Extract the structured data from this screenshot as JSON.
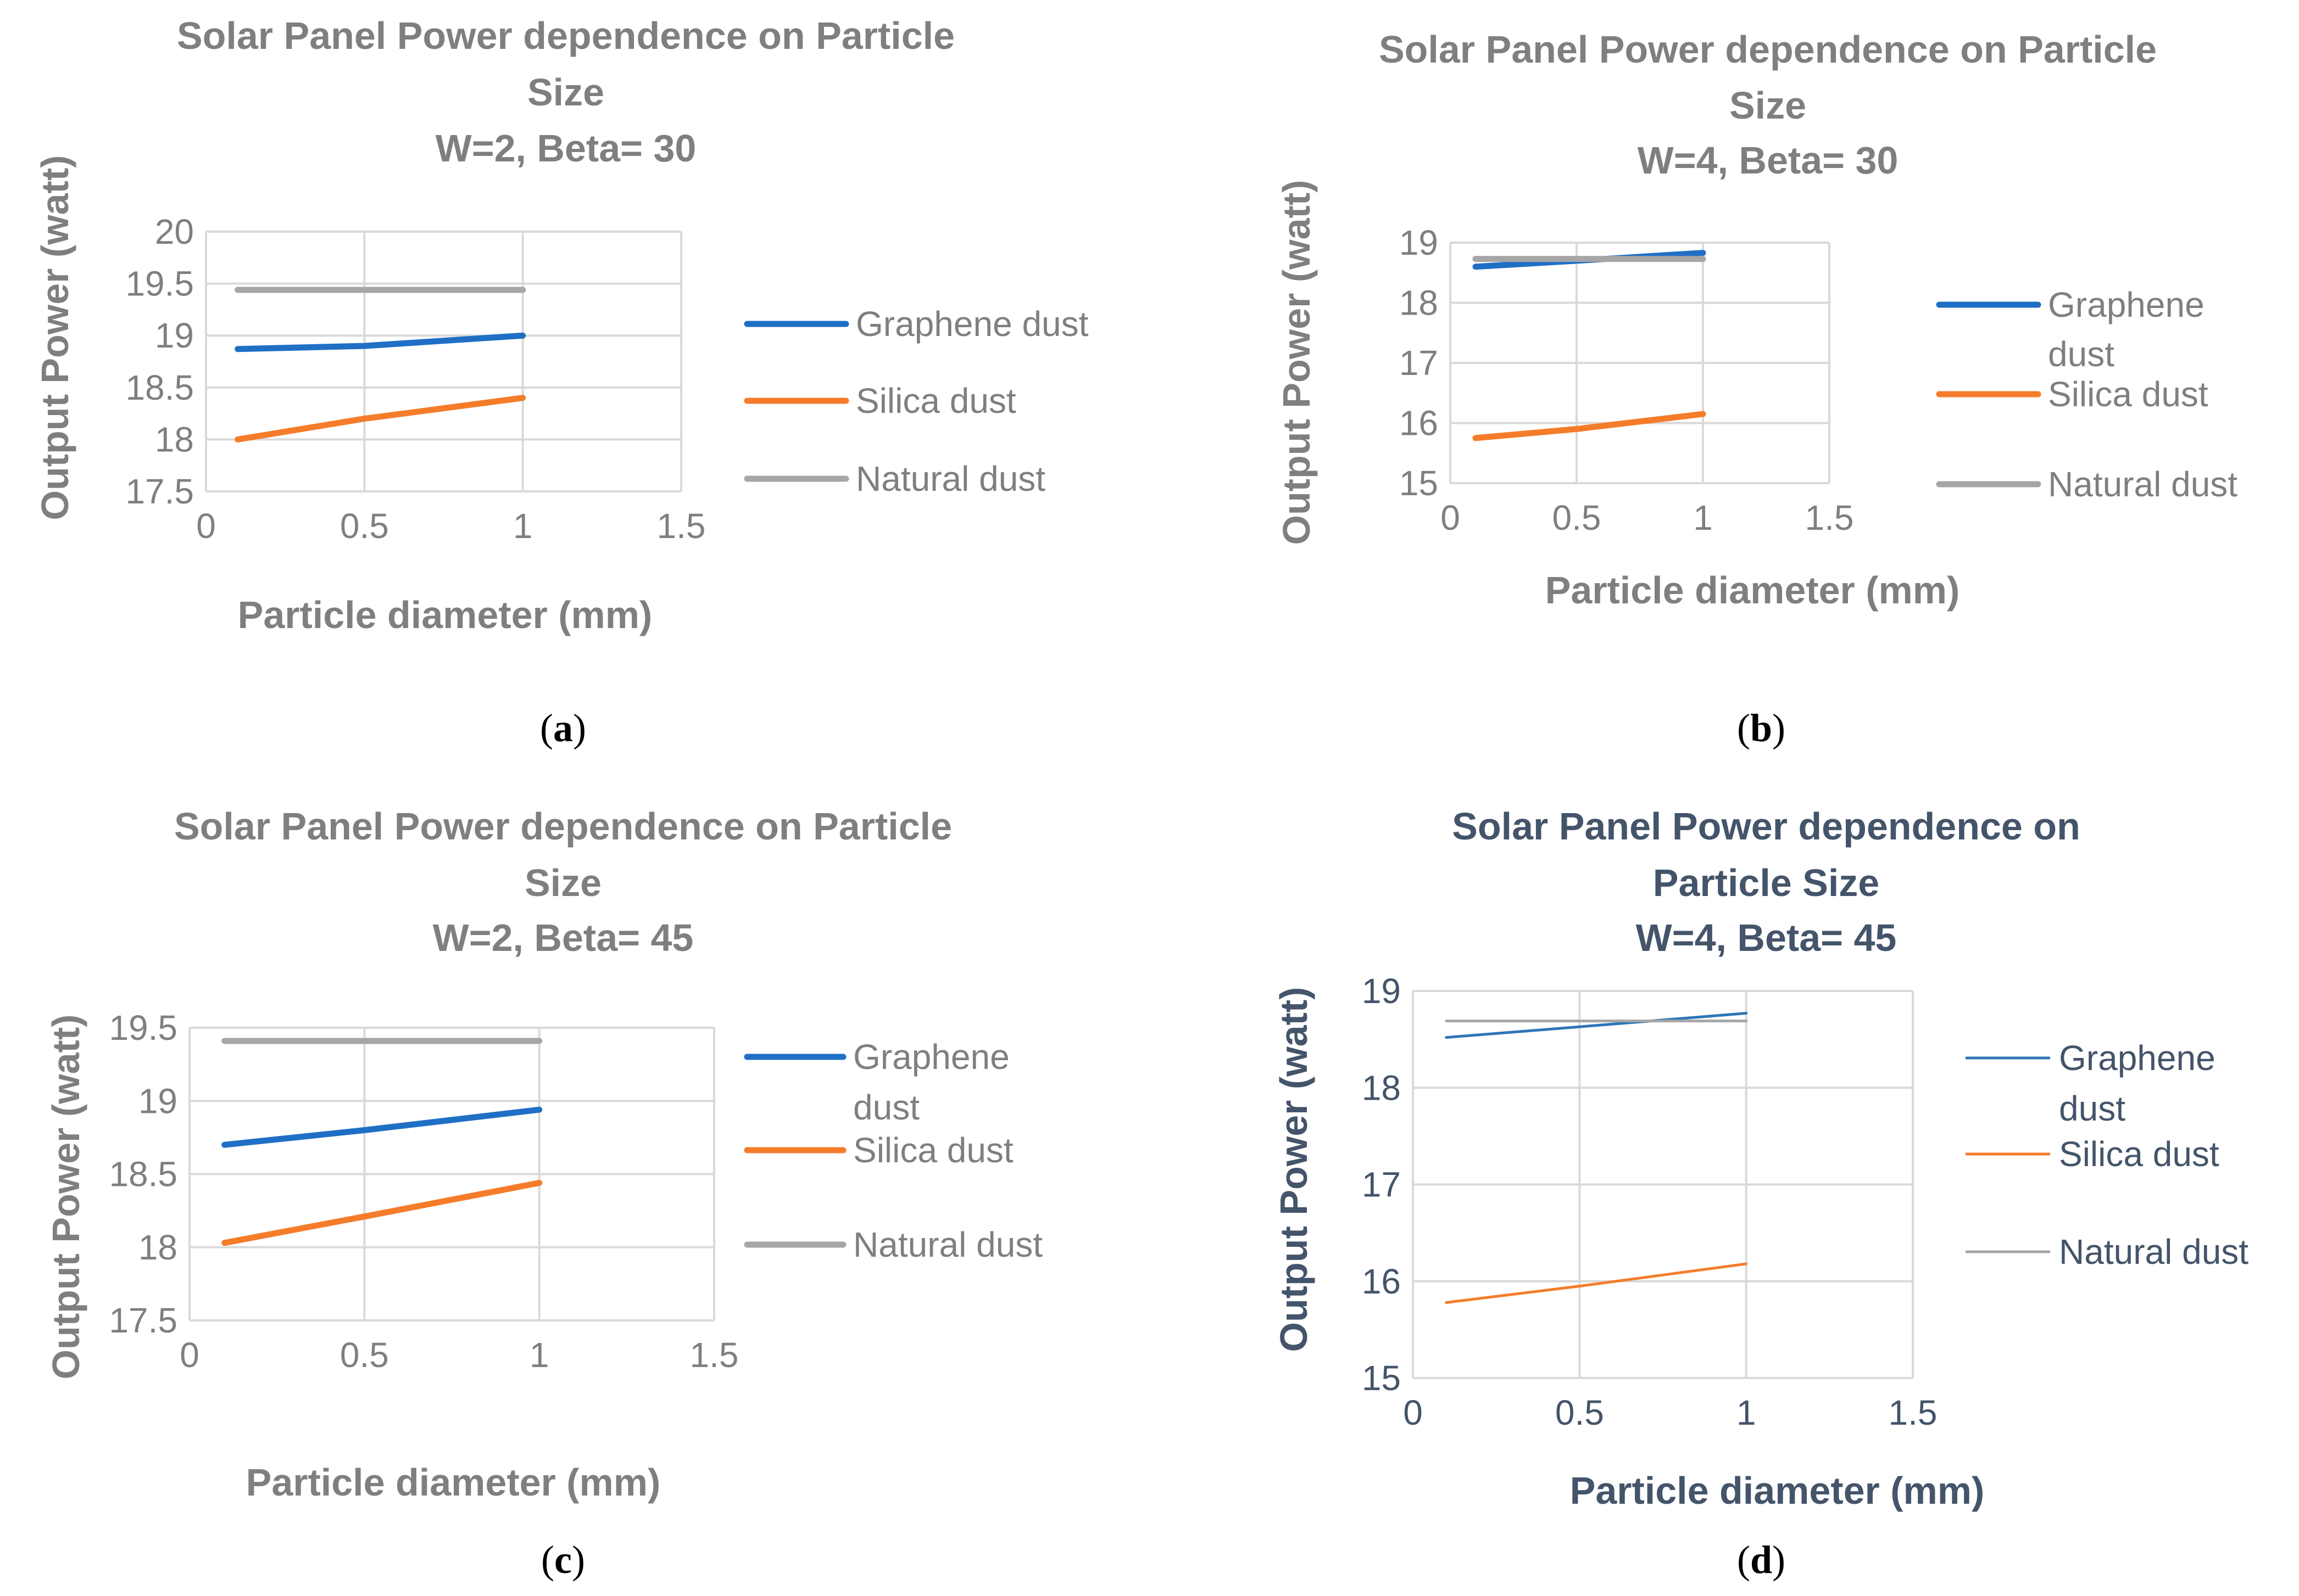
{
  "chart_data": [
    {
      "id": "a",
      "type": "line",
      "title": [
        "Solar Panel Power dependence on Particle",
        "Size",
        "W=2, Beta= 30"
      ],
      "xlabel": "Particle diameter (mm)",
      "ylabel": "Output Power (watt)",
      "xlim": [
        0,
        1.5
      ],
      "ylim": [
        17.5,
        20
      ],
      "xticks": [
        "0",
        "0.5",
        "1",
        "1.5"
      ],
      "yticks": [
        "17.5",
        "18",
        "18.5",
        "19",
        "19.5",
        "20"
      ],
      "x": [
        0.1,
        0.5,
        1
      ],
      "series": [
        {
          "name": "Graphene dust",
          "legend_lines": [
            "Graphene dust"
          ],
          "color": "#1f6fc5",
          "values": [
            18.87,
            18.9,
            19.0
          ]
        },
        {
          "name": "Silica dust",
          "legend_lines": [
            "Silica dust"
          ],
          "color": "#f57c2a",
          "values": [
            18.0,
            18.2,
            18.4
          ]
        },
        {
          "name": "Natural dust",
          "legend_lines": [
            "Natural dust"
          ],
          "color": "#a6a6a6",
          "values": [
            19.44,
            19.44,
            19.44
          ]
        }
      ],
      "caption": "a",
      "text_color": "#7f7f7f",
      "framed": false
    },
    {
      "id": "b",
      "type": "line",
      "title": [
        "Solar Panel Power dependence on Particle",
        "Size",
        "W=4, Beta= 30"
      ],
      "xlabel": "Particle diameter (mm)",
      "ylabel": "Output Power (watt)",
      "xlim": [
        0,
        1.5
      ],
      "ylim": [
        15,
        19
      ],
      "xticks": [
        "0",
        "0.5",
        "1",
        "1.5"
      ],
      "yticks": [
        "15",
        "16",
        "17",
        "18",
        "19"
      ],
      "x": [
        0.1,
        0.5,
        1
      ],
      "series": [
        {
          "name": "Graphene dust",
          "legend_lines": [
            "Graphene",
            "dust"
          ],
          "color": "#1f6fc5",
          "values": [
            18.6,
            18.7,
            18.83
          ]
        },
        {
          "name": "Silica dust",
          "legend_lines": [
            "Silica dust"
          ],
          "color": "#f57c2a",
          "values": [
            15.75,
            15.9,
            16.15
          ]
        },
        {
          "name": "Natural dust",
          "legend_lines": [
            "Natural dust"
          ],
          "color": "#a6a6a6",
          "values": [
            18.73,
            18.73,
            18.73
          ]
        }
      ],
      "caption": "b",
      "text_color": "#7f7f7f",
      "framed": false
    },
    {
      "id": "c",
      "type": "line",
      "title": [
        "Solar Panel Power dependence on Particle",
        "Size",
        "W=2, Beta= 45"
      ],
      "xlabel": "Particle diameter (mm)",
      "ylabel": "Output Power (watt)",
      "xlim": [
        0,
        1.5
      ],
      "ylim": [
        17.5,
        19.5
      ],
      "xticks": [
        "0",
        "0.5",
        "1",
        "1.5"
      ],
      "yticks": [
        "17.5",
        "18",
        "18.5",
        "19",
        "19.5"
      ],
      "x": [
        0.1,
        0.5,
        1
      ],
      "series": [
        {
          "name": "Graphene dust",
          "legend_lines": [
            "Graphene",
            "dust"
          ],
          "color": "#1f6fc5",
          "values": [
            18.7,
            18.8,
            18.94
          ]
        },
        {
          "name": "Silica dust",
          "legend_lines": [
            "Silica dust"
          ],
          "color": "#f57c2a",
          "values": [
            18.03,
            18.21,
            18.44
          ]
        },
        {
          "name": "Natural dust",
          "legend_lines": [
            "Natural dust"
          ],
          "color": "#a6a6a6",
          "values": [
            19.41,
            19.41,
            19.41
          ]
        }
      ],
      "caption": "c",
      "text_color": "#7f7f7f",
      "framed": true
    },
    {
      "id": "d",
      "type": "line",
      "title": [
        "Solar Panel Power dependence on",
        "Particle Size",
        "W=4, Beta= 45"
      ],
      "xlabel": "Particle diameter (mm)",
      "ylabel": "Output Power (watt)",
      "xlim": [
        0,
        1.5
      ],
      "ylim": [
        15,
        19
      ],
      "xticks": [
        "0",
        "0.5",
        "1",
        "1.5"
      ],
      "yticks": [
        "15",
        "16",
        "17",
        "18",
        "19"
      ],
      "x": [
        0.1,
        0.5,
        1
      ],
      "series": [
        {
          "name": "Graphene dust",
          "legend_lines": [
            "Graphene",
            "dust"
          ],
          "color": "#2e75b6",
          "values": [
            18.52,
            18.63,
            18.77
          ]
        },
        {
          "name": "Silica dust",
          "legend_lines": [
            "Silica dust"
          ],
          "color": "#f57c2a",
          "values": [
            15.78,
            15.95,
            16.18
          ]
        },
        {
          "name": "Natural dust",
          "legend_lines": [
            "Natural dust"
          ],
          "color": "#a6a6a6",
          "values": [
            18.69,
            18.69,
            18.69
          ]
        }
      ],
      "caption": "d",
      "text_color": "#44546a",
      "framed": true
    }
  ]
}
